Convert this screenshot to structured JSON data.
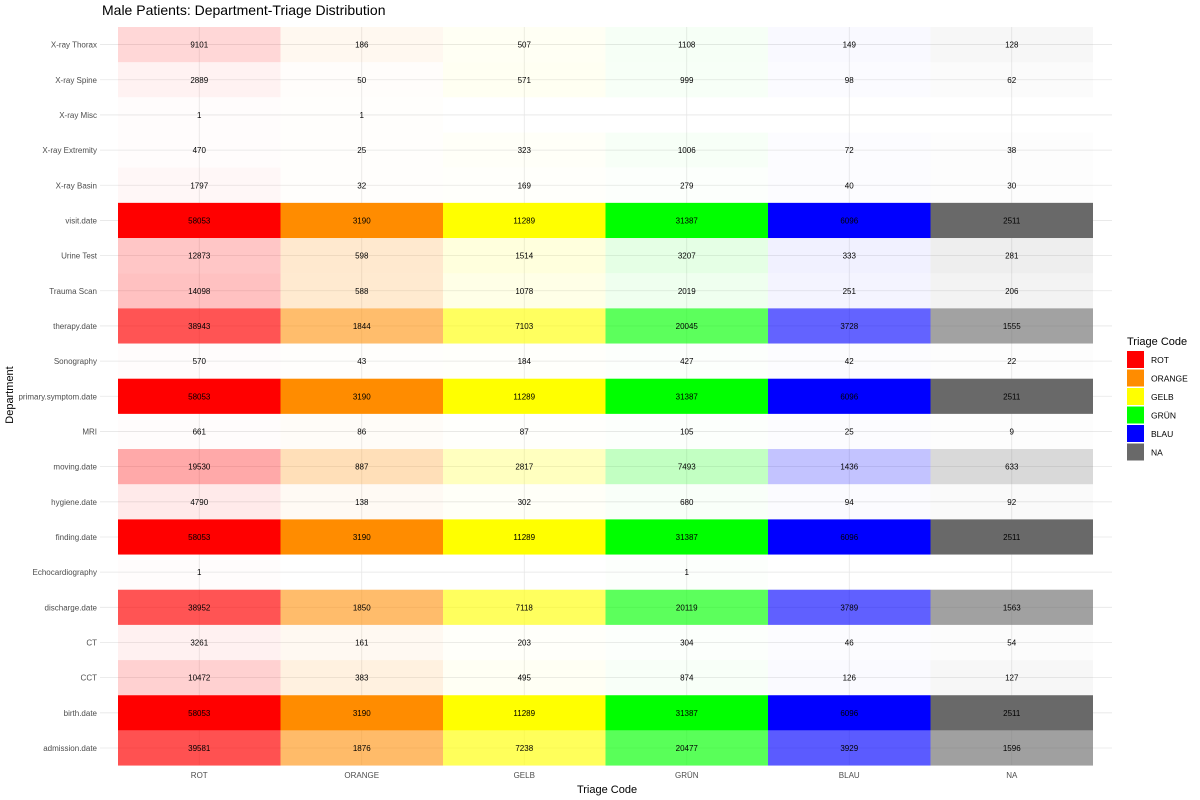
{
  "chart_data": {
    "type": "heatmap",
    "title": "Male Patients: Department-Triage Distribution",
    "xlabel": "Triage Code",
    "ylabel": "Department",
    "x": [
      "ROT",
      "ORANGE",
      "GELB",
      "GRÜN",
      "BLAU",
      "NA"
    ],
    "y": [
      "X-ray Thorax",
      "X-ray Spine",
      "X-ray Misc",
      "X-ray Extremity",
      "X-ray Basin",
      "visit.date",
      "Urine Test",
      "Trauma Scan",
      "therapy.date",
      "Sonography",
      "primary.symptom.date",
      "MRI",
      "moving.date",
      "hygiene.date",
      "finding.date",
      "Echocardiography",
      "discharge.date",
      "CT",
      "CCT",
      "birth.date",
      "admission.date"
    ],
    "values": [
      [
        9101,
        186,
        507,
        1108,
        149,
        128
      ],
      [
        2889,
        50,
        571,
        999,
        98,
        62
      ],
      [
        1,
        1,
        null,
        null,
        null,
        null
      ],
      [
        470,
        25,
        323,
        1006,
        72,
        38
      ],
      [
        1797,
        32,
        169,
        279,
        40,
        30
      ],
      [
        58053,
        3190,
        11289,
        31387,
        6096,
        2511
      ],
      [
        12873,
        598,
        1514,
        3207,
        333,
        281
      ],
      [
        14098,
        588,
        1078,
        2019,
        251,
        206
      ],
      [
        38943,
        1844,
        7103,
        20045,
        3728,
        1555
      ],
      [
        570,
        43,
        184,
        427,
        42,
        22
      ],
      [
        58053,
        3190,
        11289,
        31387,
        6096,
        2511
      ],
      [
        661,
        86,
        87,
        105,
        25,
        9
      ],
      [
        19530,
        887,
        2817,
        7493,
        1436,
        633
      ],
      [
        4790,
        138,
        302,
        680,
        94,
        92
      ],
      [
        58053,
        3190,
        11289,
        31387,
        6096,
        2511
      ],
      [
        1,
        null,
        null,
        1,
        null,
        null
      ],
      [
        38952,
        1850,
        7118,
        20119,
        3789,
        1563
      ],
      [
        3261,
        161,
        203,
        304,
        46,
        54
      ],
      [
        10472,
        383,
        495,
        874,
        126,
        127
      ],
      [
        58053,
        3190,
        11289,
        31387,
        6096,
        2511
      ],
      [
        39581,
        1876,
        7238,
        20477,
        3929,
        1596
      ]
    ],
    "grid": true,
    "legend": {
      "title": "Triage Code",
      "placement": "right",
      "items": [
        {
          "label": "ROT",
          "color": "#ff0000"
        },
        {
          "label": "ORANGE",
          "color": "#ff8c00"
        },
        {
          "label": "GELB",
          "color": "#ffff00"
        },
        {
          "label": "GRÜN",
          "color": "#00ff00"
        },
        {
          "label": "BLAU",
          "color": "#0000ff"
        },
        {
          "label": "NA",
          "color": "#696969"
        }
      ]
    },
    "colors": {
      "ROT": "#ff0000",
      "ORANGE": "#ff8c00",
      "GELB": "#ffff00",
      "GRÜN": "#00ff00",
      "BLAU": "#0000ff",
      "NA": "#696969"
    }
  }
}
